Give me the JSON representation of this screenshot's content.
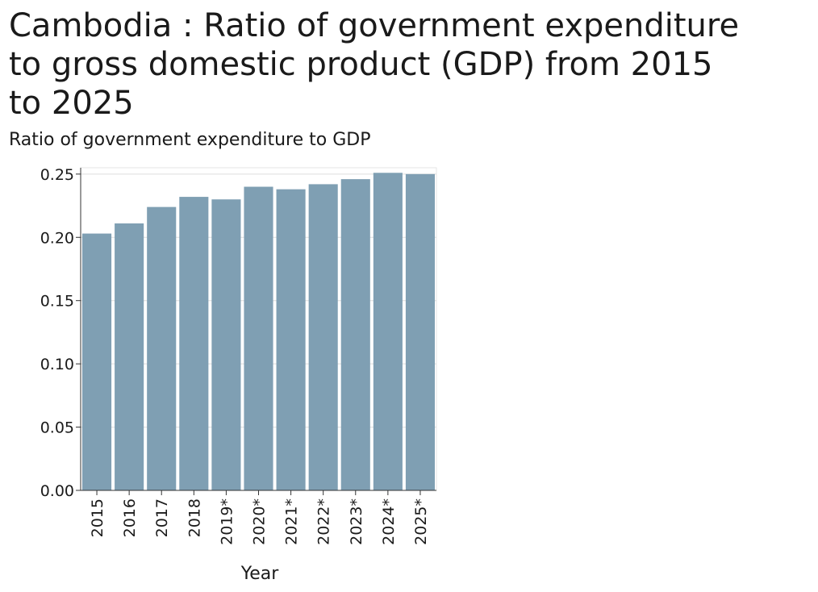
{
  "chart_data": {
    "type": "bar",
    "title": "Cambodia : Ratio of government expenditure to gross domestic product (GDP) from 2015 to 2025",
    "title_lines": [
      "Cambodia : Ratio of government expenditure",
      "to gross domestic product (GDP) from 2015",
      "to 2025"
    ],
    "ylabel": "Ratio of government expenditure to GDP",
    "xlabel": "Year",
    "categories": [
      "2015",
      "2016",
      "2017",
      "2018",
      "2019*",
      "2020*",
      "2021*",
      "2022*",
      "2023*",
      "2024*",
      "2025*"
    ],
    "values": [
      0.203,
      0.211,
      0.224,
      0.232,
      0.23,
      0.24,
      0.238,
      0.242,
      0.246,
      0.251,
      0.25
    ],
    "ylim": [
      0,
      0.255
    ],
    "yticks": [
      "0.00",
      "0.05",
      "0.10",
      "0.15",
      "0.20",
      "0.25"
    ],
    "grid": true,
    "bar_color": "#7f9fb3"
  }
}
